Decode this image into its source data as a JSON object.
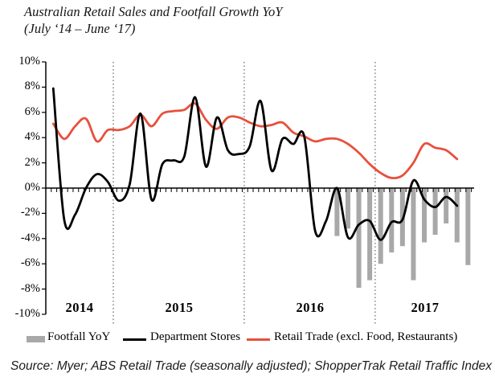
{
  "title": {
    "line1": "Australian Retail Sales and Footfall Growth YoY",
    "line2": "(July ‘14 – June ‘17)"
  },
  "chart_data": {
    "type": "composite",
    "subtype": "bar+line",
    "x_axis": {
      "years": [
        "2014",
        "2015",
        "2016",
        "2017"
      ],
      "slots": 39,
      "separators_after_slot": [
        5,
        17,
        29
      ],
      "separator_style": "dotted"
    },
    "y_axis": {
      "min": -10,
      "max": 10,
      "step": 2,
      "labels": [
        "10%",
        "8%",
        "6%",
        "4%",
        "2%",
        "0%",
        "-2%",
        "-4%",
        "-6%",
        "-8%",
        "-10%"
      ],
      "grid": false
    },
    "series": [
      {
        "name": "Footfall YoY",
        "type": "bar",
        "color": "#a8a8a8",
        "start_slot": 26,
        "values": [
          -3.8,
          -3.2,
          -7.9,
          -7.3,
          -6.0,
          -5.1,
          -4.6,
          -7.3,
          -4.3,
          -3.7,
          -2.8,
          -4.3,
          -6.1
        ]
      },
      {
        "name": "Department Stores",
        "type": "line",
        "color": "#000000",
        "start_slot": 0,
        "values": [
          7.9,
          -2.5,
          -2.1,
          0.0,
          1.1,
          0.5,
          -1.0,
          0.3,
          5.9,
          -0.9,
          1.9,
          2.2,
          2.5,
          7.2,
          1.7,
          5.6,
          3.0,
          2.7,
          3.3,
          6.9,
          1.4,
          3.9,
          3.5,
          4.1,
          -3.4,
          -2.6,
          0.0,
          -3.9,
          -2.9,
          -2.6,
          -4.1,
          -2.7,
          -2.5,
          0.6,
          -0.9,
          -1.5,
          -0.7,
          -1.4
        ]
      },
      {
        "name": "Retail Trade (excl. Food, Restaurants)",
        "type": "line",
        "color": "#e8503c",
        "start_slot": 0,
        "values": [
          5.1,
          3.9,
          4.9,
          5.5,
          3.7,
          4.6,
          4.6,
          4.9,
          5.8,
          4.9,
          5.9,
          6.1,
          6.2,
          6.7,
          5.4,
          4.7,
          5.6,
          5.6,
          5.2,
          4.9,
          5.0,
          5.2,
          4.4,
          4.1,
          3.7,
          3.9,
          3.9,
          3.5,
          2.8,
          1.9,
          1.2,
          0.8,
          1.0,
          2.0,
          3.5,
          3.2,
          3.0,
          2.3
        ]
      }
    ]
  },
  "legend": {
    "items": [
      {
        "label": "Footfall YoY",
        "swatch": "gray-bar"
      },
      {
        "label": "Department Stores",
        "swatch": "black-line"
      },
      {
        "label": "Retail Trade (excl. Food, Restaurants)",
        "swatch": "red-line"
      }
    ]
  },
  "source": "Source: Myer; ABS Retail Trade (seasonally adjusted); ShopperTrak Retail Traffic Index"
}
